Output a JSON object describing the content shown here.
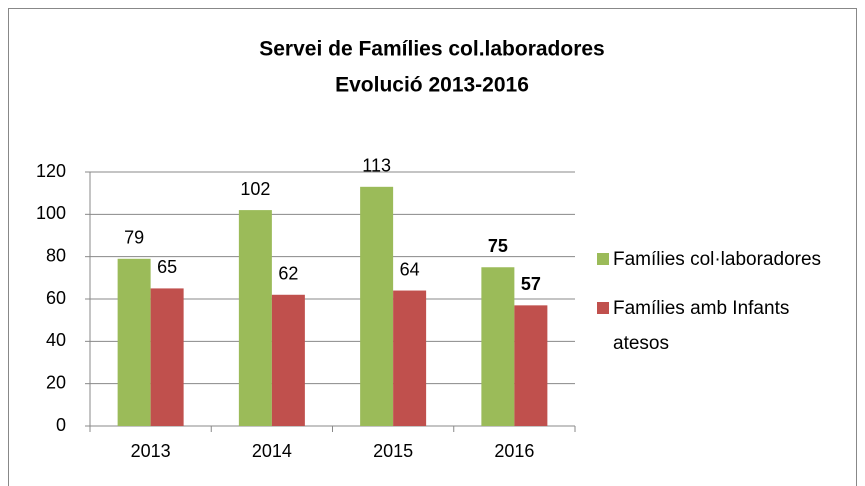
{
  "chart_data": {
    "type": "bar",
    "title": [
      "Servei de Famílies col.laboradores",
      "Evolució 2013-2016"
    ],
    "categories": [
      "2013",
      "2014",
      "2015",
      "2016"
    ],
    "series": [
      {
        "name": "Famílies col·laboradores",
        "color": "#9bbb59",
        "values": [
          79,
          102,
          113,
          75
        ]
      },
      {
        "name": "Famílies amb Infants atesos",
        "color": "#c0504d",
        "values": [
          65,
          62,
          64,
          57
        ]
      }
    ],
    "ylim": [
      0,
      120
    ],
    "yticks": [
      0,
      20,
      40,
      60,
      80,
      100,
      120
    ],
    "grid": true,
    "legend": "right"
  }
}
